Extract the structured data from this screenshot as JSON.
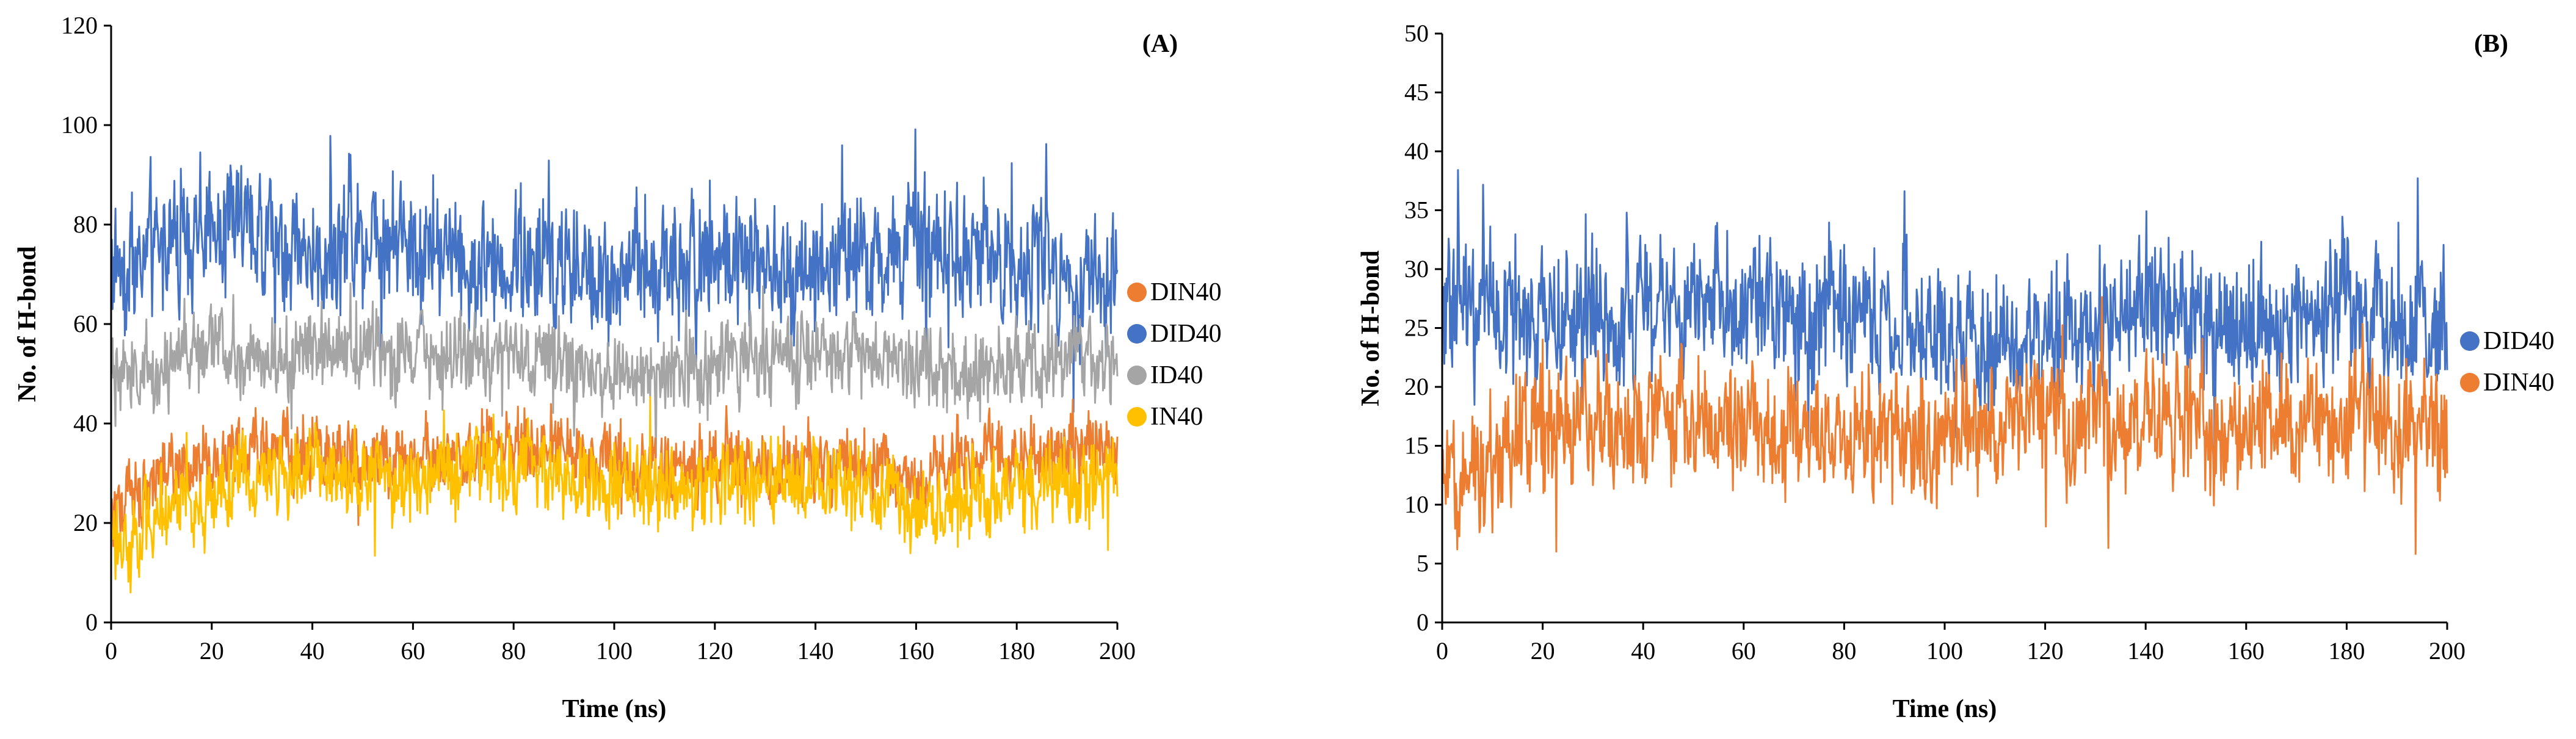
{
  "chart_data": [
    {
      "type": "line",
      "panel_label": "(A)",
      "xlabel": "Time (ns)",
      "ylabel": "No. of H-bond",
      "xlim": [
        0,
        200
      ],
      "ylim": [
        0,
        120
      ],
      "xticks": [
        0,
        20,
        40,
        60,
        80,
        100,
        120,
        140,
        160,
        180,
        200
      ],
      "yticks": [
        0,
        20,
        40,
        60,
        80,
        100,
        120
      ],
      "legend_position": "right",
      "series": [
        {
          "name": "DID40",
          "color": "#4472c4",
          "mean": 75,
          "spread": 11,
          "knots": [
            72,
            76,
            80,
            77,
            74,
            79,
            77,
            72,
            73,
            71,
            70,
            72,
            74,
            71,
            73,
            72,
            74,
            76,
            72,
            71,
            70
          ]
        },
        {
          "name": "ID40",
          "color": "#a5a5a5",
          "mean": 53,
          "spread": 7,
          "knots": [
            48,
            52,
            56,
            54,
            55,
            55,
            54,
            53,
            54,
            52,
            50,
            51,
            52,
            53,
            54,
            54,
            52,
            50,
            52,
            54,
            53
          ]
        },
        {
          "name": "DIN40",
          "color": "#ed7d31",
          "mean": 32,
          "spread": 6,
          "knots": [
            22,
            30,
            33,
            35,
            34,
            33,
            32,
            34,
            36,
            34,
            31,
            31,
            32,
            31,
            31,
            32,
            28,
            34,
            34,
            35,
            36
          ]
        },
        {
          "name": "IN40",
          "color": "#ffc000",
          "mean": 28,
          "spread": 7,
          "knots": [
            15,
            22,
            27,
            30,
            30,
            30,
            28,
            31,
            32,
            30,
            27,
            27,
            28,
            28,
            28,
            29,
            20,
            26,
            27,
            28,
            28
          ]
        }
      ],
      "legend_order": [
        "DIN40",
        "DID40",
        "ID40",
        "IN40"
      ]
    },
    {
      "type": "line",
      "panel_label": "(B)",
      "xlabel": "Time (ns)",
      "ylabel": "No. of H-bond",
      "xlim": [
        0,
        200
      ],
      "ylim": [
        0,
        50
      ],
      "xticks": [
        0,
        20,
        40,
        60,
        80,
        100,
        120,
        140,
        160,
        180,
        200
      ],
      "yticks": [
        0,
        5,
        10,
        15,
        20,
        25,
        30,
        35,
        40,
        45,
        50
      ],
      "legend_position": "right",
      "series": [
        {
          "name": "DID40",
          "color": "#4472c4",
          "mean": 26,
          "spread": 5,
          "knots": [
            28,
            27,
            27,
            26,
            26,
            27,
            27,
            26,
            27,
            25,
            24,
            24,
            24,
            25,
            27,
            26,
            25,
            25,
            28,
            25,
            25
          ]
        },
        {
          "name": "DIN40",
          "color": "#ed7d31",
          "mean": 16,
          "spread": 4.5,
          "knots": [
            11,
            14,
            17,
            17,
            17,
            17,
            17,
            17,
            16,
            16,
            16,
            17,
            17,
            17,
            17,
            17,
            17,
            16,
            17,
            17,
            17
          ]
        }
      ],
      "legend_order": [
        "DID40",
        "DIN40"
      ]
    }
  ]
}
